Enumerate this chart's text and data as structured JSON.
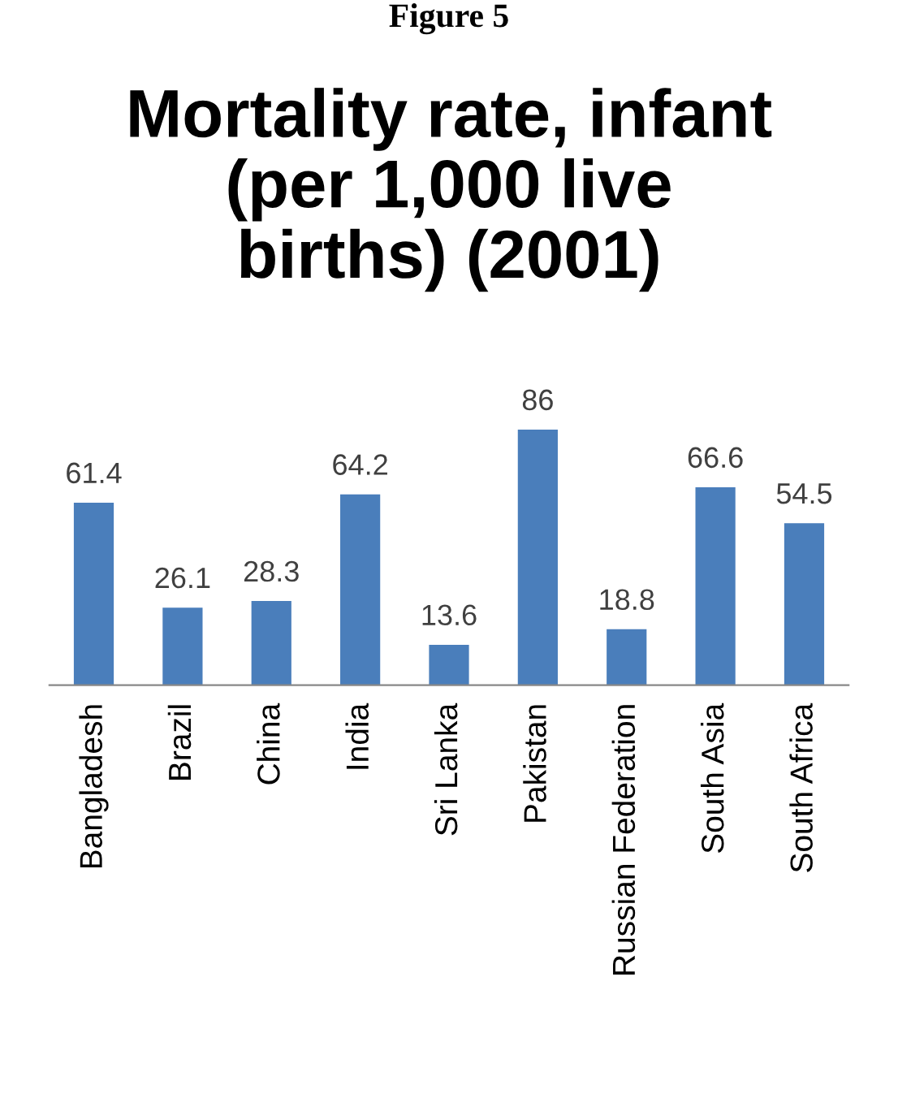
{
  "chart_data": {
    "type": "bar",
    "title": "Mortality rate, infant\n(per 1,000 live\nbirths) (2001)",
    "annotations": [
      "Figure 5"
    ],
    "categories": [
      "Bangladesh",
      "Brazil",
      "China",
      "India",
      "Sri Lanka",
      "Pakistan",
      "Russian Federation",
      "South Asia",
      "South Africa"
    ],
    "values": [
      61.4,
      26.1,
      28.3,
      64.2,
      13.6,
      86,
      18.8,
      66.6,
      54.5
    ],
    "color": "#4a7ebb",
    "data_labels": true
  }
}
